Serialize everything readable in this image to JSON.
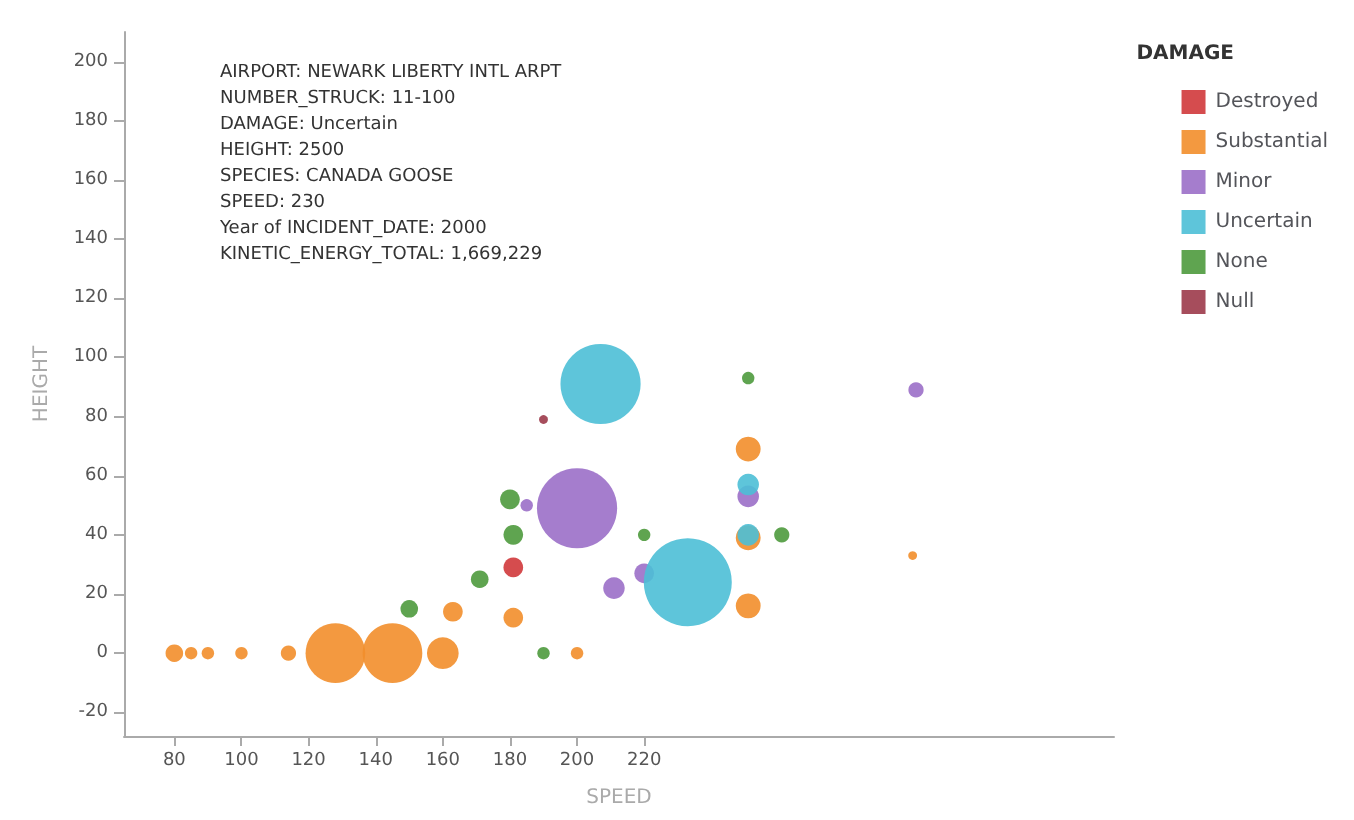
{
  "chart_data": {
    "type": "bubble",
    "xlabel": "SPEED",
    "ylabel": "HEIGHT",
    "legend_title": "DAMAGE",
    "legend": "right",
    "grid": false,
    "marker": "circle",
    "xlim": [
      65,
      360
    ],
    "xticks": [
      80,
      100,
      120,
      140,
      160,
      180,
      200,
      220
    ],
    "ylim": [
      -28,
      210
    ],
    "yticks": [
      -20,
      0,
      20,
      40,
      60,
      80,
      100,
      120,
      140,
      160,
      180,
      200
    ],
    "series": [
      {
        "name": "Destroyed",
        "color": "#d0393b",
        "x": [
          181
        ],
        "values": [
          29
        ],
        "sizes": [
          0.05
        ]
      },
      {
        "name": "Substantial",
        "color": "#f28e2b",
        "x": [
          80,
          85,
          90,
          100,
          114,
          128,
          145,
          160,
          163,
          181,
          200,
          251,
          251,
          251,
          300
        ],
        "values": [
          0,
          0,
          0,
          0,
          0,
          0,
          0,
          0,
          14,
          12,
          0,
          69,
          39,
          16,
          33
        ],
        "sizes": [
          0.04,
          0.02,
          0.02,
          0.02,
          0.03,
          0.46,
          0.46,
          0.13,
          0.05,
          0.05,
          0.02,
          0.08,
          0.08,
          0.08,
          0.01
        ]
      },
      {
        "name": "Minor",
        "color": "#9b6fc8",
        "x": [
          200,
          211,
          220,
          185,
          251,
          301
        ],
        "values": [
          49,
          22,
          27,
          50,
          53,
          89
        ],
        "sizes": [
          0.83,
          0.06,
          0.05,
          0.02,
          0.06,
          0.03
        ]
      },
      {
        "name": "Uncertain",
        "color": "#4cbfd6",
        "x": [
          207,
          233,
          251,
          251
        ],
        "values": [
          91,
          24,
          57,
          40
        ],
        "sizes": [
          0.83,
          1,
          0.06,
          0.06
        ]
      },
      {
        "name": "None",
        "color": "#4e9a3d",
        "x": [
          180,
          181,
          171,
          150,
          220,
          190,
          251,
          261
        ],
        "values": [
          52,
          40,
          25,
          15,
          40,
          0,
          93,
          40
        ],
        "sizes": [
          0.05,
          0.05,
          0.04,
          0.04,
          0.02,
          0.02,
          0.02,
          0.03
        ]
      },
      {
        "name": "Null",
        "color": "#9c3a4a",
        "x": [
          190
        ],
        "values": [
          79
        ],
        "sizes": [
          0.01
        ]
      }
    ],
    "annotations": [
      "AIRPORT: NEWARK LIBERTY INTL ARPT",
      "NUMBER_STRUCK: 11-100",
      "DAMAGE: Uncertain",
      "HEIGHT: 2500",
      "SPECIES: CANADA GOOSE",
      "SPEED: 230",
      "Year of INCIDENT_DATE: 2000",
      "KINETIC_ENERGY_TOTAL: 1,669,229"
    ]
  }
}
